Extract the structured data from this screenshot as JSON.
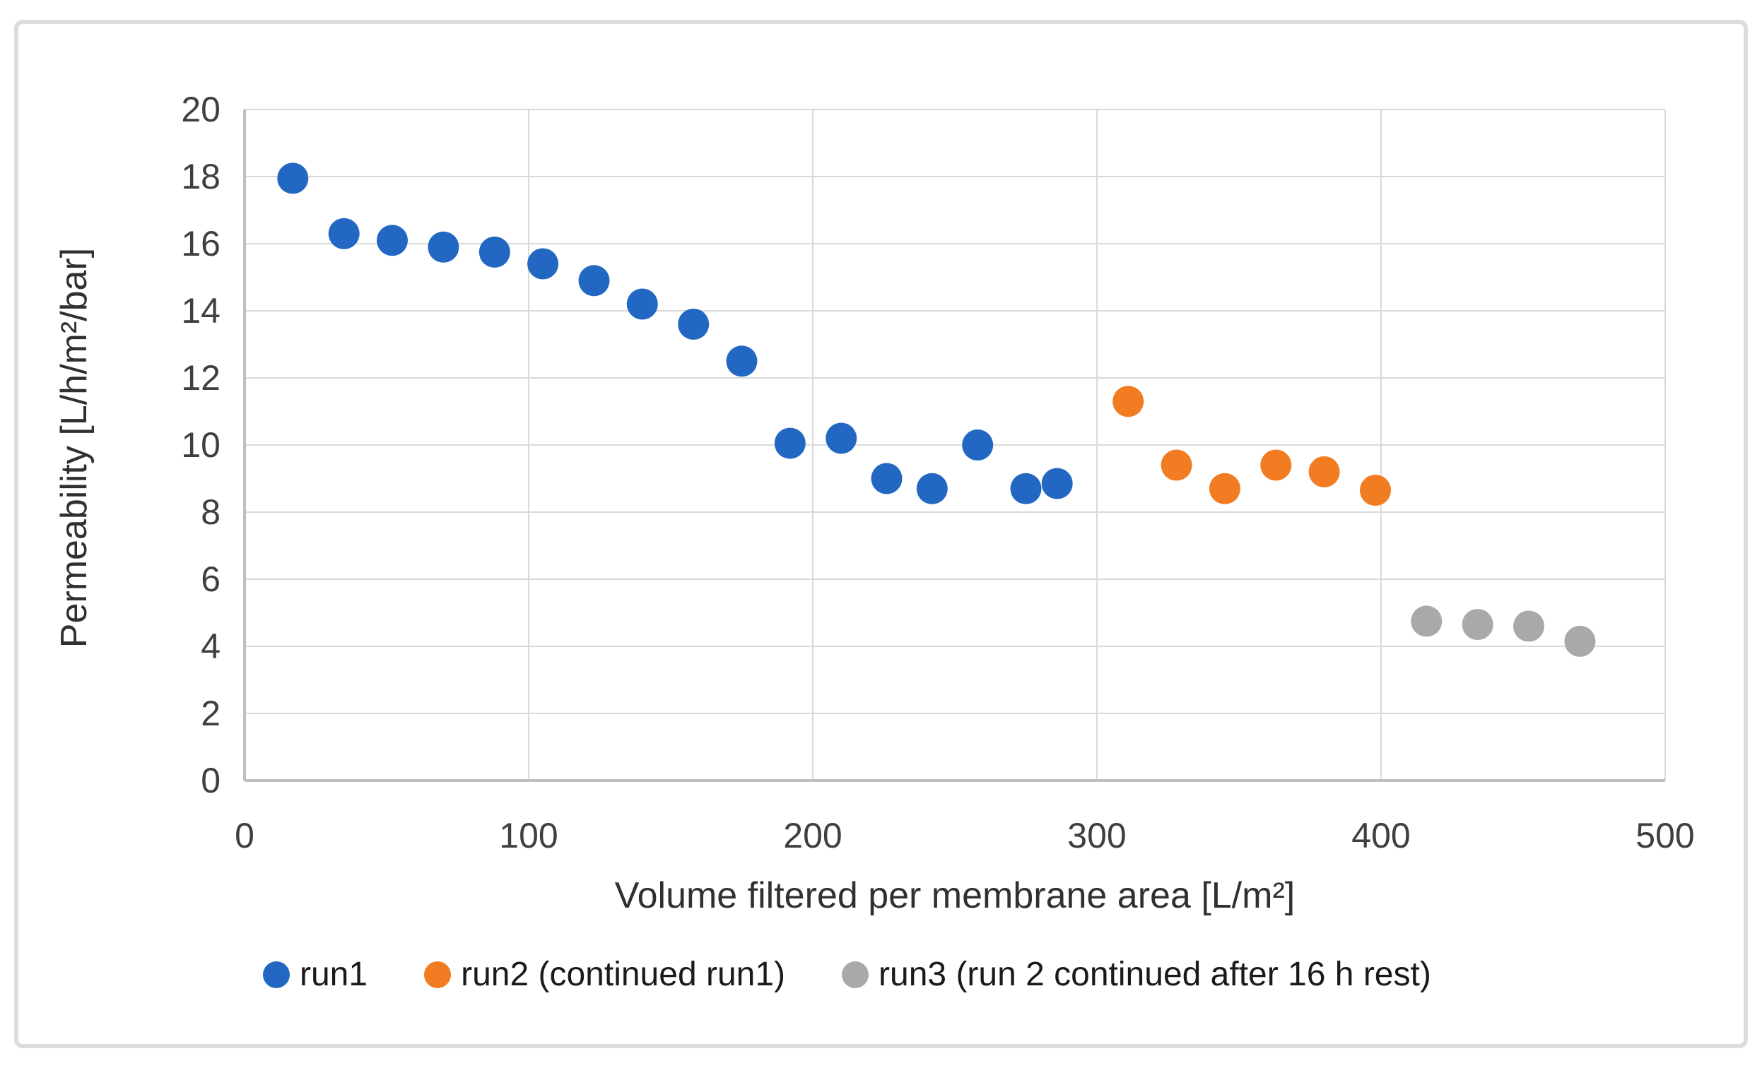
{
  "figure": {
    "background": "#ffffff",
    "border_color": "#dcdcdc"
  },
  "styles": {
    "gridline_color": "#d9d9d9",
    "axis_line_color": "#bfbfbf",
    "tick_text_color": "#3f3f3f"
  },
  "chart_data": {
    "type": "scatter",
    "title": "",
    "xlabel": "Volume filtered per membrane area [L/m²]",
    "ylabel": "Permeability [L/h/m²/bar]",
    "xlim": [
      0,
      500
    ],
    "ylim": [
      0,
      20
    ],
    "x_ticks": [
      0,
      100,
      200,
      300,
      400,
      500
    ],
    "y_ticks": [
      0,
      2,
      4,
      6,
      8,
      10,
      12,
      14,
      16,
      18,
      20
    ],
    "grid": true,
    "legend_position": "bottom",
    "series": [
      {
        "name": "run1",
        "color": "#2268c3",
        "points": [
          [
            17,
            17.95
          ],
          [
            35,
            16.3
          ],
          [
            52,
            16.1
          ],
          [
            70,
            15.9
          ],
          [
            88,
            15.75
          ],
          [
            105,
            15.4
          ],
          [
            123,
            14.9
          ],
          [
            140,
            14.2
          ],
          [
            158,
            13.6
          ],
          [
            175,
            12.5
          ],
          [
            192,
            10.05
          ],
          [
            210,
            10.2
          ],
          [
            226,
            9.0
          ],
          [
            242,
            8.7
          ],
          [
            258,
            10.0
          ],
          [
            275,
            8.7
          ],
          [
            286,
            8.85
          ]
        ]
      },
      {
        "name": "run2 (continued run1)",
        "color": "#f17c22",
        "points": [
          [
            311,
            11.3
          ],
          [
            328,
            9.4
          ],
          [
            345,
            8.7
          ],
          [
            363,
            9.4
          ],
          [
            380,
            9.2
          ],
          [
            398,
            8.65
          ]
        ]
      },
      {
        "name": "run3 (run 2 continued after 16 h rest)",
        "color": "#a9a9a9",
        "points": [
          [
            416,
            4.75
          ],
          [
            434,
            4.65
          ],
          [
            452,
            4.6
          ],
          [
            470,
            4.15
          ]
        ]
      }
    ]
  }
}
